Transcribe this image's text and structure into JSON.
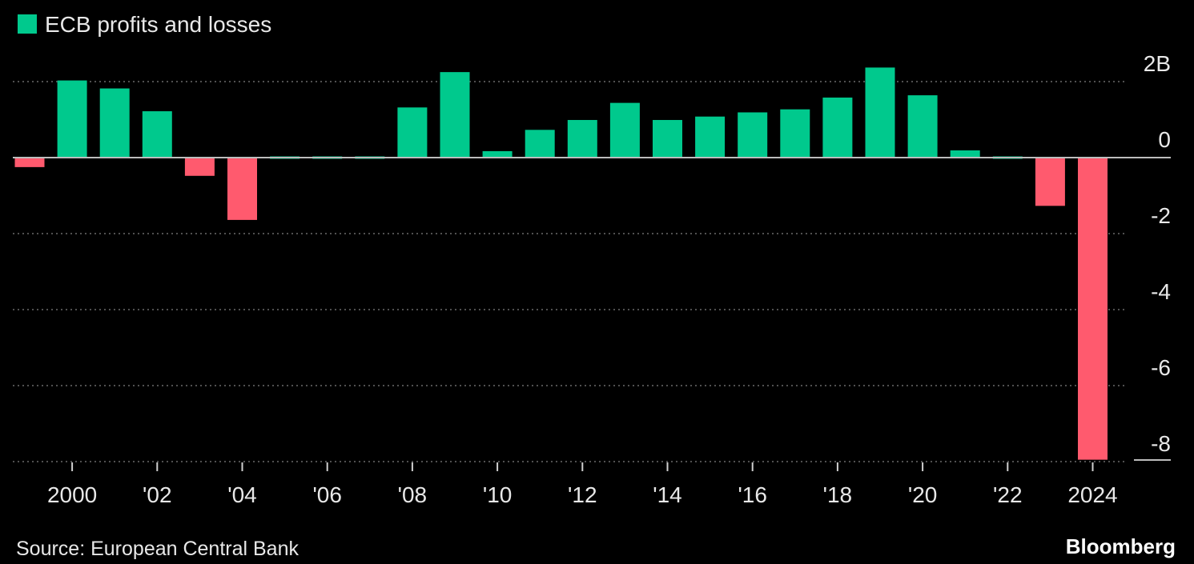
{
  "chart_data": {
    "type": "bar",
    "title": "",
    "legend": [
      {
        "label": "ECB profits and losses",
        "color": "#00c98d"
      }
    ],
    "ylabel": "",
    "xlabel": "",
    "ylim": [
      -8,
      2.4
    ],
    "y_ticks": [
      {
        "value": 2,
        "label": "2B"
      },
      {
        "value": 0,
        "label": "0"
      },
      {
        "value": -2,
        "label": "-2"
      },
      {
        "value": -4,
        "label": "-4"
      },
      {
        "value": -6,
        "label": "-6"
      },
      {
        "value": -8,
        "label": "-8"
      }
    ],
    "categories": [
      1999,
      2000,
      2001,
      2002,
      2003,
      2004,
      2005,
      2006,
      2007,
      2008,
      2009,
      2010,
      2011,
      2012,
      2013,
      2014,
      2015,
      2016,
      2017,
      2018,
      2019,
      2020,
      2021,
      2022,
      2023,
      2024
    ],
    "x_tick_labels": [
      {
        "category": 2000,
        "label": "2000"
      },
      {
        "category": 2002,
        "label": "'02"
      },
      {
        "category": 2004,
        "label": "'04"
      },
      {
        "category": 2006,
        "label": "'06"
      },
      {
        "category": 2008,
        "label": "'08"
      },
      {
        "category": 2010,
        "label": "'10"
      },
      {
        "category": 2012,
        "label": "'12"
      },
      {
        "category": 2014,
        "label": "'14"
      },
      {
        "category": 2016,
        "label": "'16"
      },
      {
        "category": 2018,
        "label": "'18"
      },
      {
        "category": 2020,
        "label": "'20"
      },
      {
        "category": 2022,
        "label": "'22"
      },
      {
        "category": 2024,
        "label": "2024"
      }
    ],
    "values": [
      -0.25,
      2.03,
      1.82,
      1.22,
      -0.48,
      -1.64,
      0.0,
      0.0,
      0.0,
      1.32,
      2.25,
      0.17,
      0.73,
      0.99,
      1.44,
      0.99,
      1.08,
      1.19,
      1.27,
      1.58,
      2.37,
      1.64,
      0.19,
      0.0,
      -1.27,
      -7.95
    ],
    "positive_color": "#00c98d",
    "negative_color": "#ff5a6e"
  },
  "footer": {
    "source": "Source: European Central Bank",
    "brand": "Bloomberg"
  }
}
